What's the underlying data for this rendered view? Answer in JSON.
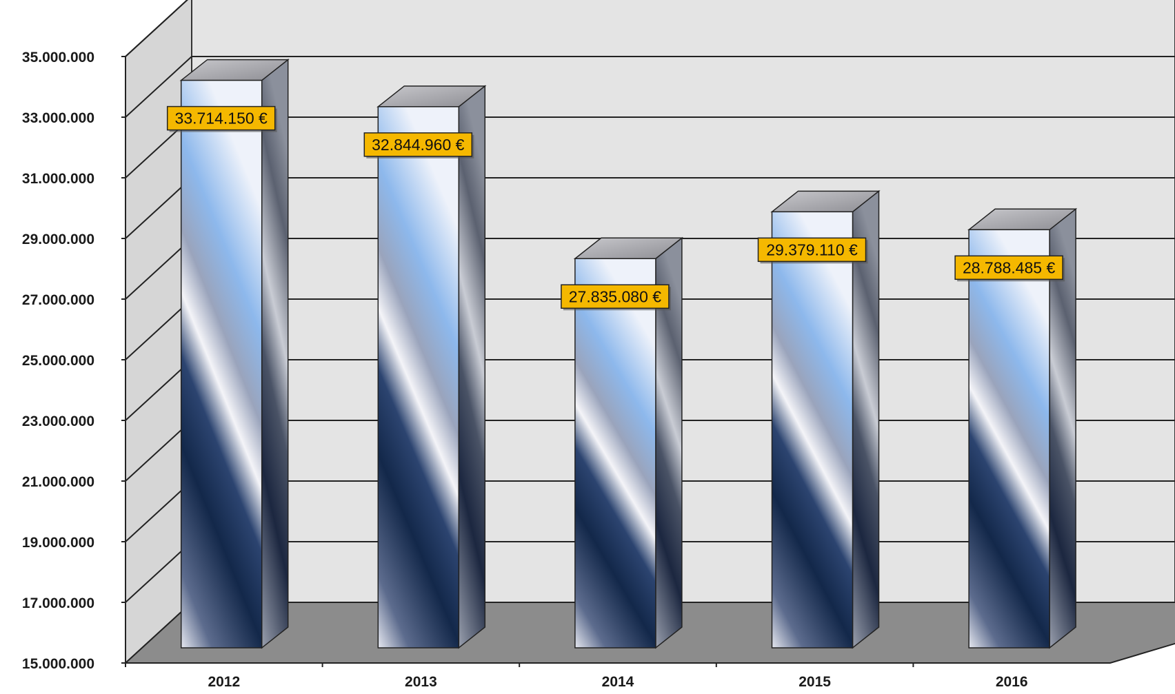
{
  "chart_data": {
    "type": "bar",
    "style": "3d-column",
    "categories": [
      "2012",
      "2013",
      "2014",
      "2015",
      "2016"
    ],
    "series": [
      {
        "values": [
          33714150,
          32844960,
          27835080,
          29379110,
          28788485
        ],
        "data_labels": [
          "33.714.150 €",
          "32.844.960 €",
          "27.835.080 €",
          "29.379.110 €",
          "28.788.485 €"
        ]
      }
    ],
    "y_ticks": [
      15000000,
      17000000,
      19000000,
      21000000,
      23000000,
      25000000,
      27000000,
      29000000,
      31000000,
      33000000,
      35000000
    ],
    "y_tick_labels": [
      "15.000.000",
      "17.000.000",
      "19.000.000",
      "21.000.000",
      "23.000.000",
      "25.000.000",
      "27.000.000",
      "29.000.000",
      "31.000.000",
      "33.000.000",
      "35.000.000"
    ],
    "ylim": [
      15000000,
      35000000
    ],
    "grid": true,
    "legend": "none",
    "title": "",
    "xlabel": "",
    "ylabel": "",
    "colors": {
      "bar_dark": "#13284a",
      "bar_light": "#8db8ec",
      "bar_highlight": "#f4f4f8",
      "label_fill": "#f5b800",
      "floor": "#8c8c8c",
      "back_wall": "#e4e4e4",
      "side_wall": "#d6d6d6"
    }
  }
}
